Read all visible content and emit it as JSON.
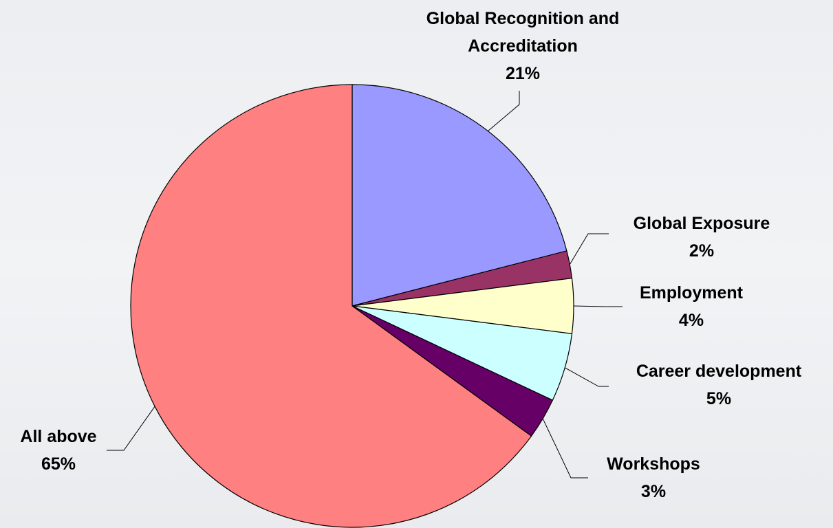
{
  "chart_data": {
    "type": "pie",
    "categories": [
      "Global Recognition and Accreditation",
      "Global Exposure",
      "Employment",
      "Career development",
      "Workshops",
      "All above"
    ],
    "values": [
      21,
      2,
      4,
      5,
      3,
      65
    ],
    "value_labels": [
      "21%",
      "2%",
      "4%",
      "5%",
      "3%",
      "65%"
    ],
    "colors": [
      "#9999ff",
      "#993366",
      "#ffffcc",
      "#ccffff",
      "#660066",
      "#ff8080"
    ]
  }
}
